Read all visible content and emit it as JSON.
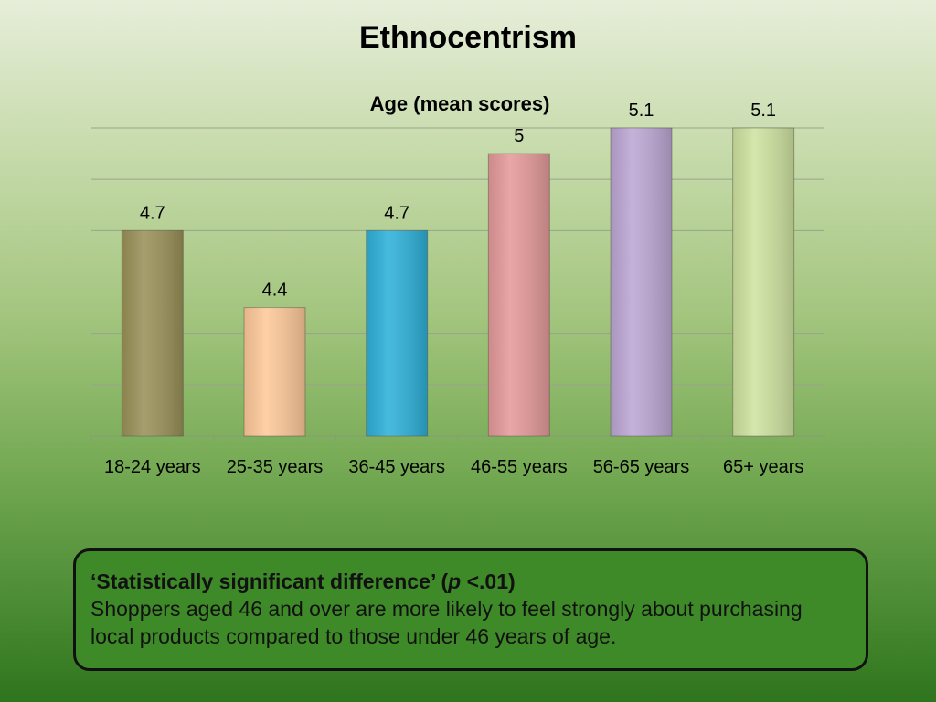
{
  "title": "Ethnocentrism",
  "chart_data": {
    "type": "bar",
    "title": "Age (mean scores)",
    "categories": [
      "18-24 years",
      "25-35 years",
      "36-45 years",
      "46-55 years",
      "56-65 years",
      "65+ years"
    ],
    "values": [
      4.7,
      4.4,
      4.7,
      5,
      5.1,
      5.1
    ],
    "data_labels": [
      "4.7",
      "4.4",
      "4.7",
      "5",
      "5.1",
      "5.1"
    ],
    "ylim": [
      3.9,
      5.1
    ],
    "grid": true,
    "legend": "none",
    "colors": [
      "#9a9158",
      "#fec99a",
      "#2eb1d9",
      "#e59a9a",
      "#bda7d4",
      "#cfe3a0"
    ]
  },
  "note": {
    "heading_prefix": "‘Statistically significant difference’ (",
    "heading_italic": "p",
    "heading_suffix": " <.01)",
    "body": "Shoppers aged 46 and over are more likely to feel strongly about purchasing local products compared to those under 46 years of age."
  }
}
